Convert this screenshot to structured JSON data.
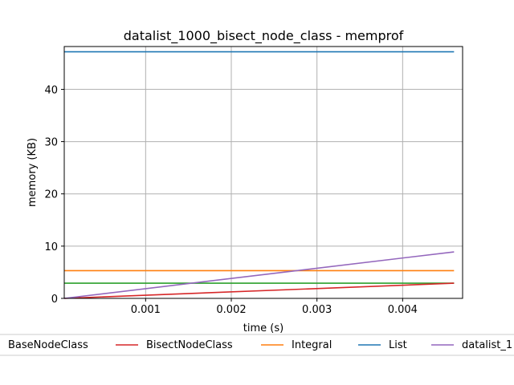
{
  "chart_data": {
    "type": "line",
    "title": "datalist_1000_bisect_node_class - memprof",
    "xlabel": "time (s)",
    "ylabel": "memory (KB)",
    "xlim": [
      5e-05,
      0.0047
    ],
    "ylim": [
      0,
      48.2
    ],
    "xticks": [
      0.001,
      0.002,
      0.003,
      0.004
    ],
    "xtick_labels": [
      "0.001",
      "0.002",
      "0.003",
      "0.004"
    ],
    "yticks": [
      0,
      10,
      20,
      30,
      40
    ],
    "ytick_labels": [
      "0",
      "10",
      "20",
      "30",
      "40"
    ],
    "grid": true,
    "legend_position": "bottom",
    "series": [
      {
        "name": "BaseNodeClass",
        "color": "#2ca02c",
        "x": [
          5e-05,
          0.0046
        ],
        "y": [
          2.9,
          2.9
        ]
      },
      {
        "name": "BisectNodeClass",
        "color": "#d62728",
        "x": [
          5e-05,
          0.0046
        ],
        "y": [
          0.0,
          2.9
        ]
      },
      {
        "name": "Integral",
        "color": "#ff7f0e",
        "x": [
          5e-05,
          0.0046
        ],
        "y": [
          5.3,
          5.3
        ]
      },
      {
        "name": "List",
        "color": "#1f77b4",
        "x": [
          5e-05,
          0.0046
        ],
        "y": [
          47.2,
          47.2
        ]
      },
      {
        "name": "datalist_1",
        "color": "#9467bd",
        "x": [
          5e-05,
          0.0046
        ],
        "y": [
          0.0,
          8.9
        ]
      }
    ]
  }
}
